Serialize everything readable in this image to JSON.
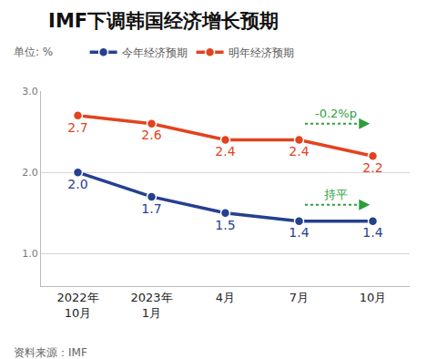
{
  "chart_data": {
    "type": "line",
    "title": "IMF下调韩国经济增长预期",
    "subtitle": "单位: %",
    "source": "资料来源：IMF",
    "categories": [
      "2022年\n10月",
      "2023年\n1月",
      "4月",
      "7月",
      "10月"
    ],
    "series": [
      {
        "name": "今年经济预期",
        "color": "#25408f",
        "marker": "circle",
        "values": [
          2.0,
          1.7,
          1.5,
          1.4,
          1.4
        ],
        "value_labels": [
          "2.0",
          "1.7",
          "1.5",
          "1.4",
          "1.4"
        ]
      },
      {
        "name": "明年经济预期",
        "color": "#e2431e",
        "marker": "circle",
        "values": [
          2.7,
          2.6,
          2.4,
          2.4,
          2.2
        ],
        "value_labels": [
          "2.7",
          "2.6",
          "2.4",
          "2.4",
          "2.2"
        ]
      }
    ],
    "ylim": [
      0.6,
      3.0
    ],
    "yticks": [
      {
        "value": 1,
        "label": "1.0"
      },
      {
        "value": 2,
        "label": "2.0"
      },
      {
        "value": 3,
        "label": "3.0"
      }
    ],
    "grid": true,
    "legend": "top",
    "data_labels": true,
    "annotations": [
      {
        "text": "-0.2%p",
        "x": 3.5,
        "y": 2.62,
        "color": "#2e9e3a"
      },
      {
        "text": "持平",
        "x": 3.5,
        "y": 1.62,
        "color": "#2e9e3a"
      }
    ]
  }
}
